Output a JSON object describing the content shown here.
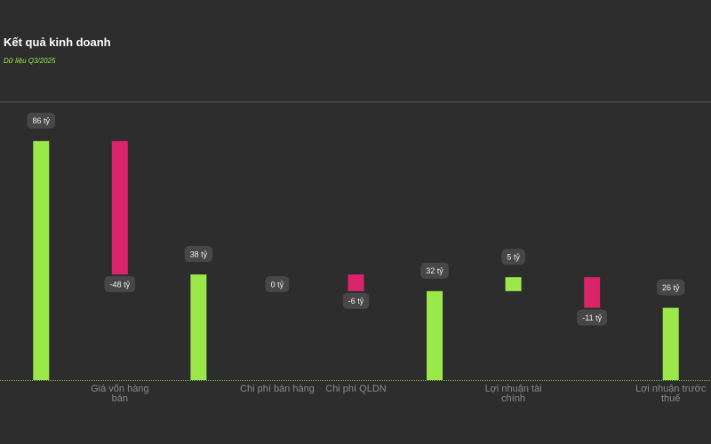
{
  "chart_data": {
    "type": "waterfall",
    "title": "Kết quả kinh doanh",
    "subtitle": "Dữ liệu Q3/2025",
    "categories": [
      null,
      "Giá vốn hàng bán",
      null,
      "Chi phí bán hàng",
      "Chi phí QLDN",
      null,
      "Lợi nhuận tài chính",
      null,
      "Lợi nhuận trước thuế"
    ],
    "values": [
      86,
      -48,
      38,
      0,
      -6,
      32,
      5,
      -11,
      26
    ],
    "value_labels": [
      "86 tỷ",
      "-48 tỷ",
      "38 tỷ",
      "0 tỷ",
      "-6 tỷ",
      "32 tỷ",
      "5 tỷ",
      "-11 tỷ",
      "26 tỷ"
    ],
    "measures": [
      "total",
      "relative",
      "total",
      "relative",
      "relative",
      "total",
      "relative",
      "relative",
      "total"
    ],
    "colors": {
      "positive": "#9be84a",
      "negative": "#d9236b"
    },
    "ylim": [
      0,
      100
    ]
  }
}
